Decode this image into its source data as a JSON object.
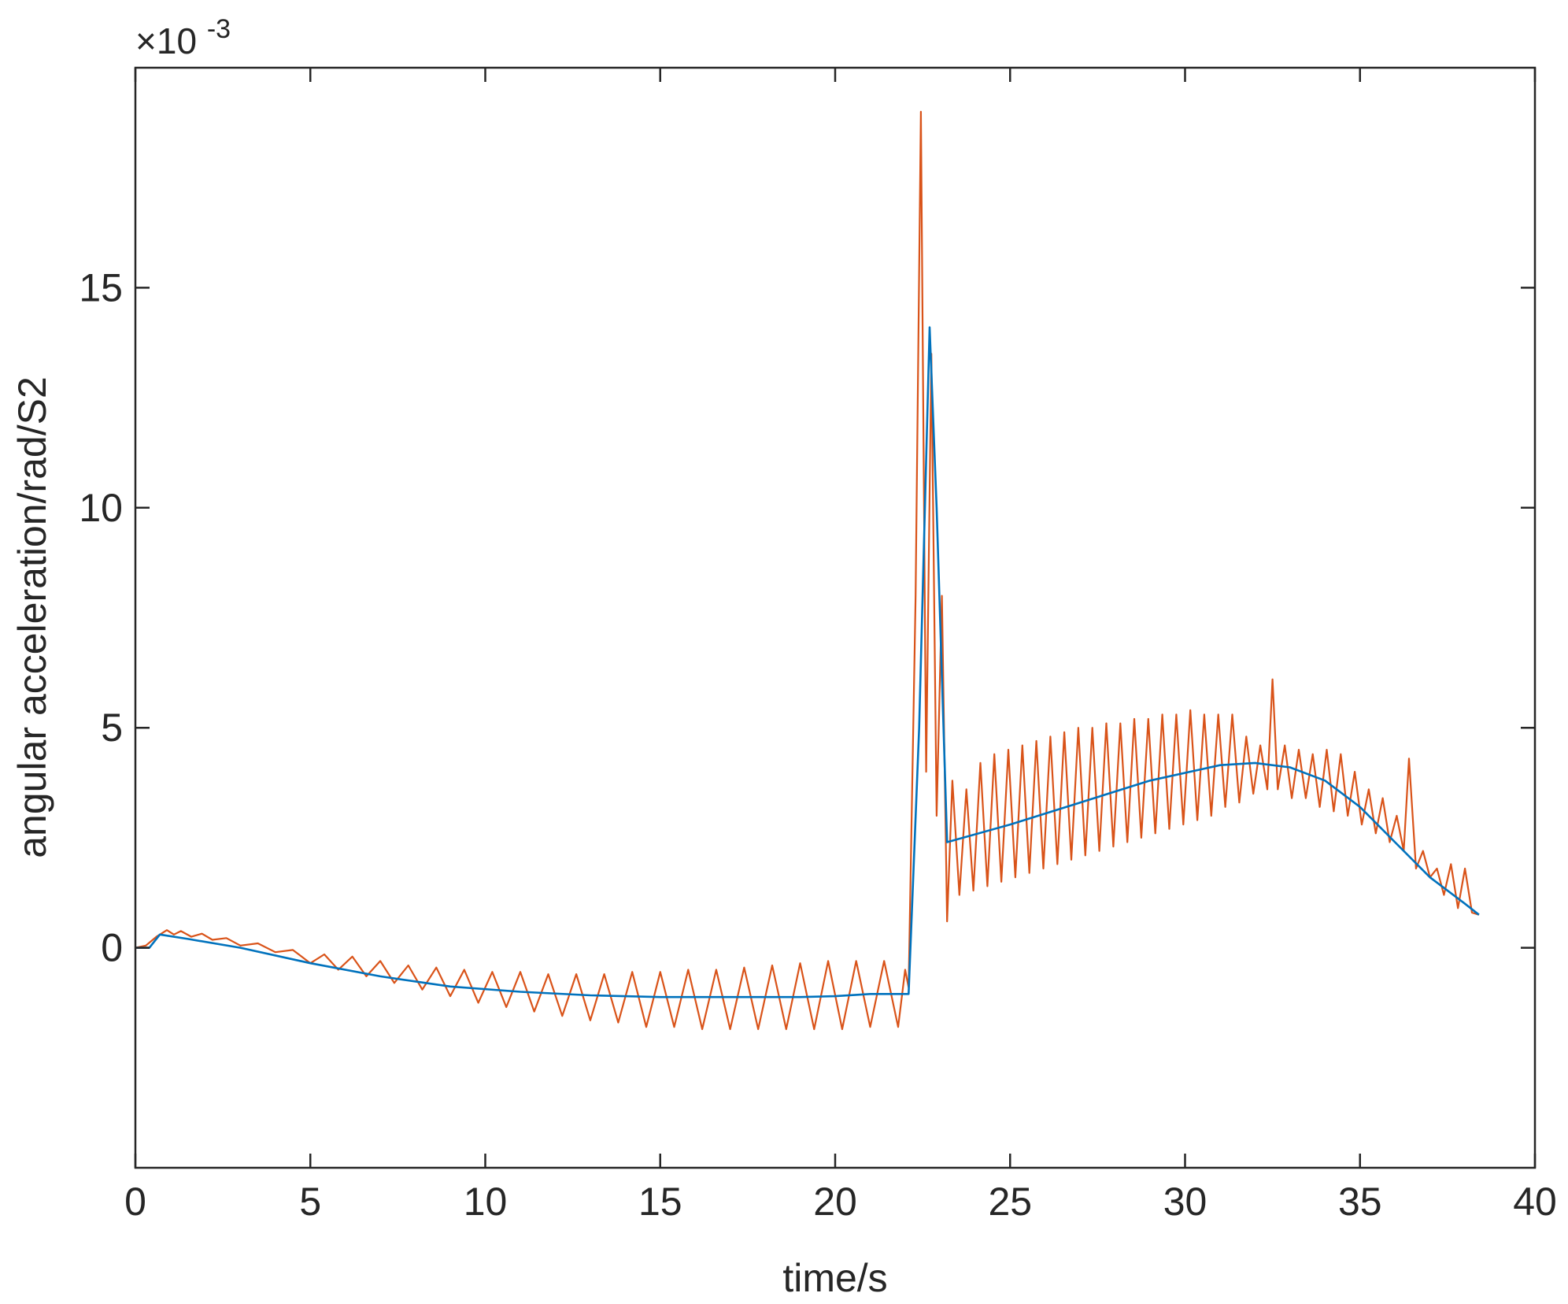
{
  "chart_data": {
    "type": "line",
    "title": "",
    "xlabel": "time/s",
    "ylabel": "angular acceleration/rad/S2",
    "y_exponent_label": {
      "base": "×10",
      "exp": "-3"
    },
    "xlim": [
      0,
      40
    ],
    "ylim": [
      -5,
      20
    ],
    "xticks": [
      0,
      5,
      10,
      15,
      20,
      25,
      30,
      35,
      40
    ],
    "xtick_labels": [
      "0",
      "5",
      "10",
      "15",
      "20",
      "25",
      "30",
      "35",
      "40"
    ],
    "yticks": [
      0,
      5,
      10,
      15
    ],
    "ytick_labels": [
      "0",
      "5",
      "10",
      "15"
    ],
    "grid": false,
    "legend": "none",
    "colors": {
      "series1": "#0072BD",
      "series2": "#D95319",
      "axis": "#262626"
    },
    "series": [
      {
        "color": "#0072BD",
        "x": [
          0,
          0.4,
          0.7,
          1.5,
          3,
          5,
          7,
          9,
          11,
          13,
          15,
          17,
          19,
          20,
          21,
          22.1,
          22.4,
          22.7,
          22.9,
          23.2,
          25,
          27,
          29,
          31,
          32,
          33,
          34,
          35,
          36,
          37,
          38,
          38.4
        ],
        "y": [
          0,
          0,
          0.3,
          0.2,
          0.0,
          -0.35,
          -0.65,
          -0.88,
          -1.0,
          -1.08,
          -1.12,
          -1.12,
          -1.12,
          -1.1,
          -1.05,
          -1.05,
          5.0,
          14.1,
          10.0,
          2.4,
          2.8,
          3.3,
          3.8,
          4.15,
          4.2,
          4.1,
          3.8,
          3.2,
          2.4,
          1.6,
          1.0,
          0.75
        ]
      },
      {
        "color": "#D95319",
        "x": [
          0,
          0.3,
          0.6,
          0.9,
          1.1,
          1.3,
          1.6,
          1.9,
          2.2,
          2.6,
          3.0,
          3.5,
          4.0,
          4.5,
          5.0,
          5.4,
          5.8,
          6.2,
          6.6,
          7.0,
          7.4,
          7.8,
          8.2,
          8.6,
          9.0,
          9.4,
          9.8,
          10.2,
          10.6,
          11.0,
          11.4,
          11.8,
          12.2,
          12.6,
          13.0,
          13.4,
          13.8,
          14.2,
          14.6,
          15.0,
          15.4,
          15.8,
          16.2,
          16.6,
          17.0,
          17.4,
          17.8,
          18.2,
          18.6,
          19.0,
          19.4,
          19.8,
          20.2,
          20.6,
          21.0,
          21.4,
          21.8,
          22.0,
          22.1,
          22.3,
          22.45,
          22.6,
          22.75,
          22.9,
          23.05,
          23.2,
          23.35,
          23.55,
          23.75,
          23.95,
          24.15,
          24.35,
          24.55,
          24.75,
          24.95,
          25.15,
          25.35,
          25.55,
          25.75,
          25.95,
          26.15,
          26.35,
          26.55,
          26.75,
          26.95,
          27.15,
          27.35,
          27.55,
          27.75,
          27.95,
          28.15,
          28.35,
          28.55,
          28.75,
          28.95,
          29.15,
          29.35,
          29.55,
          29.75,
          29.95,
          30.15,
          30.35,
          30.55,
          30.75,
          30.95,
          31.15,
          31.35,
          31.55,
          31.75,
          31.95,
          32.15,
          32.35,
          32.5,
          32.65,
          32.85,
          33.05,
          33.25,
          33.45,
          33.65,
          33.85,
          34.05,
          34.25,
          34.45,
          34.65,
          34.85,
          35.05,
          35.25,
          35.45,
          35.65,
          35.85,
          36.05,
          36.25,
          36.4,
          36.6,
          36.8,
          37.0,
          37.2,
          37.4,
          37.6,
          37.8,
          38.0,
          38.2,
          38.4
        ],
        "y": [
          0,
          0.05,
          0.25,
          0.4,
          0.3,
          0.38,
          0.25,
          0.32,
          0.18,
          0.22,
          0.05,
          0.1,
          -0.1,
          -0.05,
          -0.35,
          -0.15,
          -0.5,
          -0.2,
          -0.65,
          -0.3,
          -0.8,
          -0.4,
          -0.95,
          -0.45,
          -1.1,
          -0.5,
          -1.25,
          -0.55,
          -1.35,
          -0.55,
          -1.45,
          -0.6,
          -1.55,
          -0.6,
          -1.65,
          -0.6,
          -1.7,
          -0.55,
          -1.8,
          -0.55,
          -1.8,
          -0.5,
          -1.85,
          -0.5,
          -1.85,
          -0.45,
          -1.85,
          -0.4,
          -1.85,
          -0.35,
          -1.85,
          -0.3,
          -1.85,
          -0.3,
          -1.8,
          -0.3,
          -1.8,
          -0.5,
          -0.9,
          8.0,
          19.0,
          4.0,
          13.5,
          3.0,
          8.0,
          0.6,
          3.8,
          1.2,
          3.6,
          1.3,
          4.2,
          1.4,
          4.4,
          1.5,
          4.5,
          1.6,
          4.6,
          1.7,
          4.7,
          1.8,
          4.8,
          1.9,
          4.9,
          2.0,
          5.0,
          2.1,
          5.0,
          2.2,
          5.1,
          2.3,
          5.1,
          2.4,
          5.2,
          2.5,
          5.2,
          2.6,
          5.3,
          2.7,
          5.3,
          2.8,
          5.4,
          2.9,
          5.3,
          3.0,
          5.3,
          3.2,
          5.3,
          3.3,
          4.8,
          3.5,
          4.6,
          3.6,
          6.1,
          3.6,
          4.6,
          3.4,
          4.5,
          3.4,
          4.4,
          3.2,
          4.5,
          3.1,
          4.4,
          3.0,
          4.0,
          2.8,
          3.6,
          2.6,
          3.4,
          2.4,
          3.0,
          2.2,
          4.3,
          1.8,
          2.2,
          1.6,
          1.8,
          1.2,
          1.9,
          0.9,
          1.8,
          0.8,
          0.75
        ]
      }
    ]
  }
}
